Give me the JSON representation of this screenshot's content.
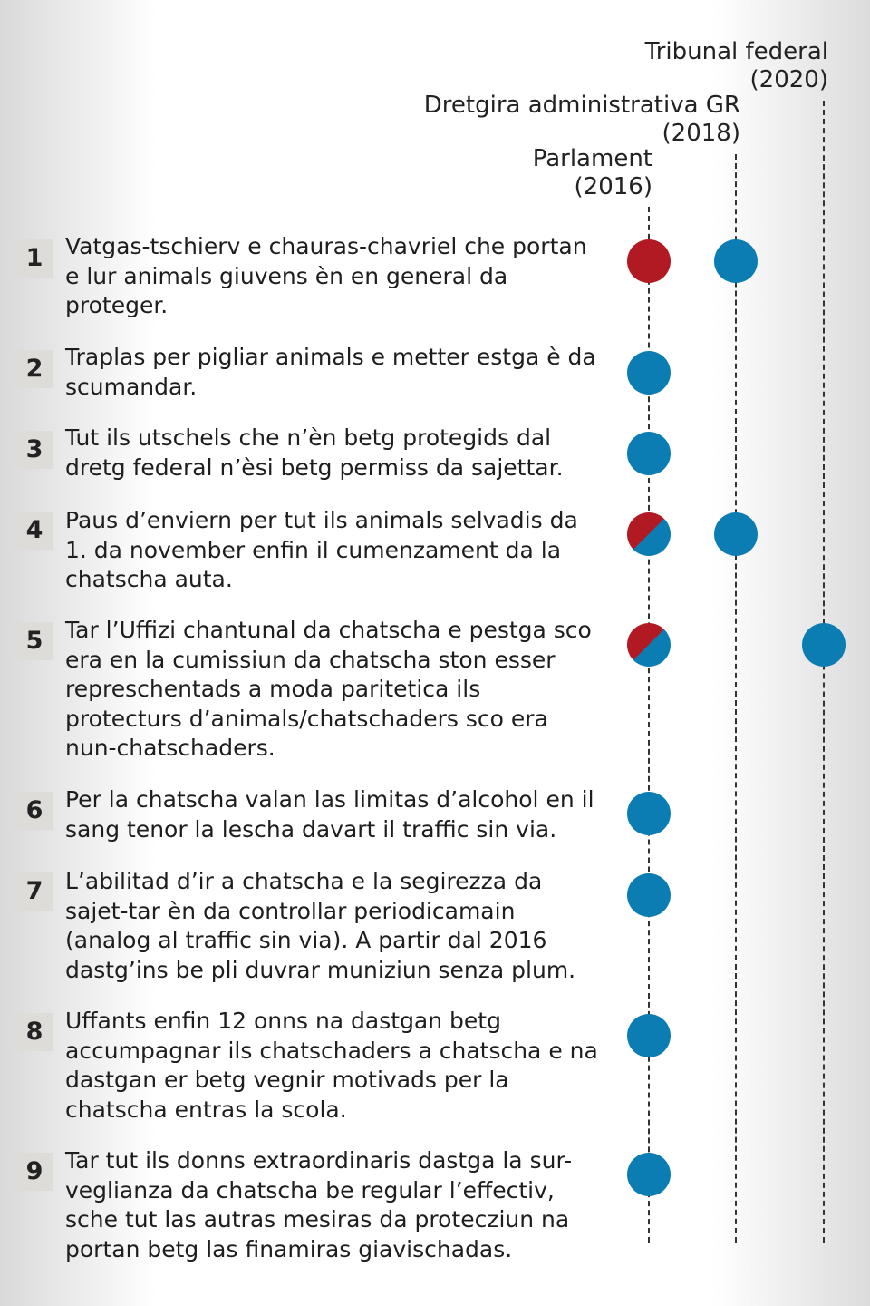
{
  "colors": {
    "blue": "#0b7db3",
    "red": "#b11a22",
    "split": "red/blue"
  },
  "columns": [
    {
      "label": "Tribunal federal\n(2020)"
    },
    {
      "label": "Dretgira administrativa GR\n(2018)"
    },
    {
      "label": "Parlament\n(2016)"
    }
  ],
  "rows": [
    {
      "num": "1",
      "text": "Vatgas-tschierv e chauras-chavriel che portan e lur animals giuvens èn en general da proteger.",
      "parlament": "red",
      "dretgira": "blue",
      "tribunal": ""
    },
    {
      "num": "2",
      "text": "Traplas per pigliar animals e metter estga è da scumandar.",
      "parlament": "blue",
      "dretgira": "",
      "tribunal": ""
    },
    {
      "num": "3",
      "text": "Tut ils utschels che n’èn betg protegids dal dretg federal n’èsi betg permiss da sajettar.",
      "parlament": "blue",
      "dretgira": "",
      "tribunal": ""
    },
    {
      "num": "4",
      "text": "Paus d’enviern per tut ils animals selvadis da 1. da november enfin il cumenzament da la chatscha auta.",
      "parlament": "split",
      "dretgira": "blue",
      "tribunal": ""
    },
    {
      "num": "5",
      "text": "Tar l’Uffizi chantunal da chatscha e pestga sco era en la cumissiun da chatscha ston esser represchentads a moda paritetica ils protecturs d’animals/chatschaders sco era nun-chatschaders.",
      "parlament": "split",
      "dretgira": "",
      "tribunal": "blue"
    },
    {
      "num": "6",
      "text": "Per la chatscha valan las  limitas d’alcohol en il sang tenor la lescha davart il traffic sin via.",
      "parlament": "blue",
      "dretgira": "",
      "tribunal": ""
    },
    {
      "num": "7",
      "text": "L’abilitad d’ir a chatscha e la segirezza da sajet-tar èn da controllar periodicamain (analog al traffic sin via). A partir dal 2016 dastg’ins be pli duvrar muniziun senza plum.",
      "parlament": "blue",
      "dretgira": "",
      "tribunal": ""
    },
    {
      "num": "8",
      "text": "Uffants enfin 12 onns na dastgan betg accumpagnar ils chatschaders a chatscha e na dastgan er betg vegnir motivads per la chatscha entras la scola.",
      "parlament": "blue",
      "dretgira": "",
      "tribunal": ""
    },
    {
      "num": "9",
      "text": "Tar tut ils donns extraordinaris dastga la sur-veglianza da chatscha be regular l’effectiv, sche tut las autras mesiras da protecziun na portan betg las finamiras giavischadas.",
      "parlament": "blue",
      "dretgira": "",
      "tribunal": ""
    }
  ]
}
